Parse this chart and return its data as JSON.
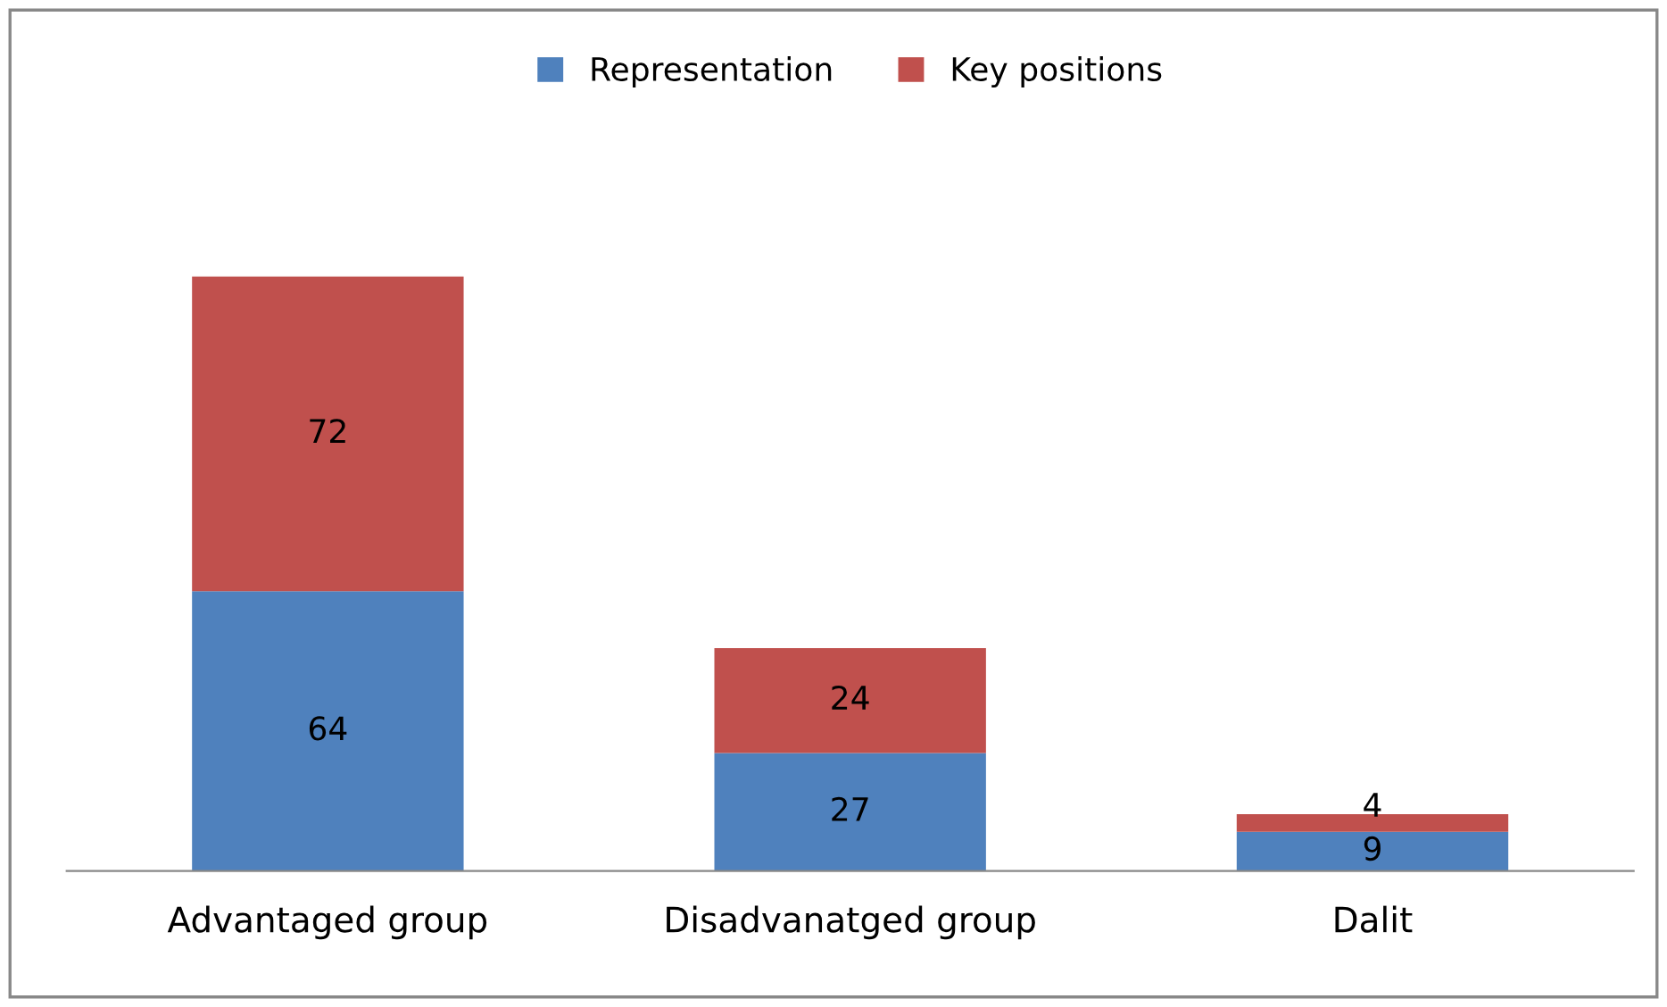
{
  "chart_data": {
    "type": "bar",
    "stacked": true,
    "data_labels": true,
    "legend": "top",
    "categories": [
      "Advantaged group",
      "Disadvanatged group",
      "Dalit"
    ],
    "series": [
      {
        "name": "Representation",
        "color": "#4f81bd",
        "values": [
          64,
          27,
          9
        ]
      },
      {
        "name": "Key positions",
        "color": "#c0504d",
        "values": [
          72,
          24,
          4
        ]
      }
    ]
  }
}
